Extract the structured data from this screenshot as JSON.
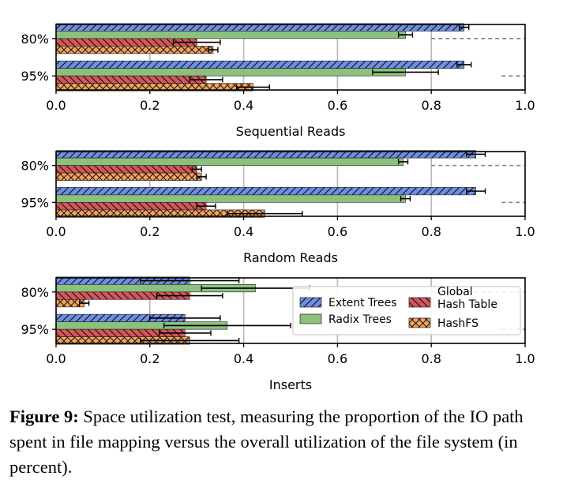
{
  "chart_data": [
    {
      "type": "bar",
      "orientation": "horizontal",
      "xlabel": "Sequential Reads",
      "xlim": [
        0,
        1.0
      ],
      "xticks": [
        "0.0",
        "0.2",
        "0.4",
        "0.6",
        "0.8",
        "1.0"
      ],
      "categories": [
        "80%",
        "95%"
      ],
      "reference_lines": [
        0.8,
        0.95
      ],
      "grid": "vertical",
      "series": [
        {
          "name": "Extent Trees",
          "values": [
            0.87,
            0.87
          ],
          "errors": [
            0.01,
            0.015
          ]
        },
        {
          "name": "Radix Trees",
          "values": [
            0.745,
            0.745
          ],
          "errors": [
            0.015,
            0.07
          ]
        },
        {
          "name": "Global Hash Table",
          "values": [
            0.3,
            0.32
          ],
          "errors": [
            0.05,
            0.035
          ]
        },
        {
          "name": "HashFS",
          "values": [
            0.335,
            0.42
          ],
          "errors": [
            0.01,
            0.035
          ]
        }
      ]
    },
    {
      "type": "bar",
      "orientation": "horizontal",
      "xlabel": "Random Reads",
      "xlim": [
        0,
        1.0
      ],
      "xticks": [
        "0.0",
        "0.2",
        "0.4",
        "0.6",
        "0.8",
        "1.0"
      ],
      "categories": [
        "80%",
        "95%"
      ],
      "reference_lines": [
        0.8,
        0.95
      ],
      "grid": "vertical",
      "series": [
        {
          "name": "Extent Trees",
          "values": [
            0.895,
            0.895
          ],
          "errors": [
            0.02,
            0.02
          ]
        },
        {
          "name": "Radix Trees",
          "values": [
            0.74,
            0.745
          ],
          "errors": [
            0.01,
            0.01
          ]
        },
        {
          "name": "Global Hash Table",
          "values": [
            0.3,
            0.32
          ],
          "errors": [
            0.01,
            0.02
          ]
        },
        {
          "name": "HashFS",
          "values": [
            0.31,
            0.445
          ],
          "errors": [
            0.01,
            0.08
          ]
        }
      ]
    },
    {
      "type": "bar",
      "orientation": "horizontal",
      "xlabel": "Inserts",
      "xlim": [
        0,
        1.0
      ],
      "xticks": [
        "0.0",
        "0.2",
        "0.4",
        "0.6",
        "0.8",
        "1.0"
      ],
      "categories": [
        "80%",
        "95%"
      ],
      "reference_lines": [
        0.8,
        0.95
      ],
      "grid": "vertical",
      "legend_position": "right",
      "series": [
        {
          "name": "Extent Trees",
          "values": [
            0.285,
            0.275
          ],
          "errors": [
            0.105,
            0.075
          ]
        },
        {
          "name": "Radix Trees",
          "values": [
            0.425,
            0.365
          ],
          "errors": [
            0.115,
            0.135
          ]
        },
        {
          "name": "Global Hash Table",
          "values": [
            0.285,
            0.275
          ],
          "errors": [
            0.07,
            0.055
          ]
        },
        {
          "name": "HashFS",
          "values": [
            0.06,
            0.285
          ],
          "errors": [
            0.01,
            0.105
          ]
        }
      ]
    }
  ],
  "legend": [
    {
      "label": "Extent Trees",
      "color": "#6d8fe5",
      "hatch": "diagonal"
    },
    {
      "label": "Radix Trees",
      "color": "#8cc07d",
      "hatch": "none"
    },
    {
      "label": "Global\nHash Table",
      "color": "#d7555a",
      "hatch": "back-diagonal"
    },
    {
      "label": "HashFS",
      "color": "#f4a25a",
      "hatch": "cross"
    }
  ],
  "caption": {
    "label": "Figure 9:",
    "text": " Space utilization test, measuring the proportion of the IO path spent in file mapping versus the overall utilization of the file system (in percent)."
  }
}
